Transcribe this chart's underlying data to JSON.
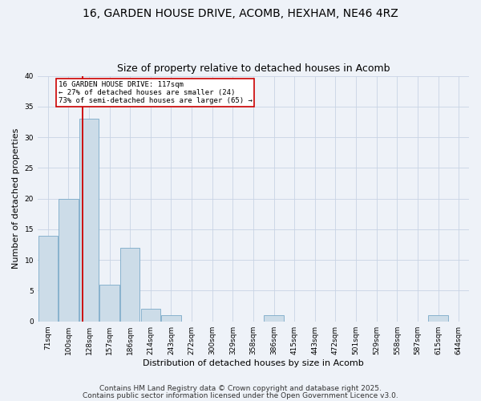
{
  "title_line1": "16, GARDEN HOUSE DRIVE, ACOMB, HEXHAM, NE46 4RZ",
  "title_line2": "Size of property relative to detached houses in Acomb",
  "xlabel": "Distribution of detached houses by size in Acomb",
  "ylabel": "Number of detached properties",
  "categories": [
    "71sqm",
    "100sqm",
    "128sqm",
    "157sqm",
    "186sqm",
    "214sqm",
    "243sqm",
    "272sqm",
    "300sqm",
    "329sqm",
    "358sqm",
    "386sqm",
    "415sqm",
    "443sqm",
    "472sqm",
    "501sqm",
    "529sqm",
    "558sqm",
    "587sqm",
    "615sqm",
    "644sqm"
  ],
  "values": [
    14,
    20,
    33,
    6,
    12,
    2,
    1,
    0,
    0,
    0,
    0,
    1,
    0,
    0,
    0,
    0,
    0,
    0,
    0,
    1,
    0
  ],
  "bar_color": "#ccdce8",
  "bar_edge_color": "#7aaac8",
  "redline_index": 1.7,
  "annotation_text": "16 GARDEN HOUSE DRIVE: 117sqm\n← 27% of detached houses are smaller (24)\n73% of semi-detached houses are larger (65) →",
  "annotation_box_color": "#ffffff",
  "annotation_box_edge": "#cc0000",
  "redline_color": "#cc0000",
  "grid_color": "#c8d4e4",
  "background_color": "#eef2f8",
  "ylim": [
    0,
    40
  ],
  "yticks": [
    0,
    5,
    10,
    15,
    20,
    25,
    30,
    35,
    40
  ],
  "footer_line1": "Contains HM Land Registry data © Crown copyright and database right 2025.",
  "footer_line2": "Contains public sector information licensed under the Open Government Licence v3.0.",
  "title_fontsize": 10,
  "subtitle_fontsize": 9,
  "tick_fontsize": 6.5,
  "ylabel_fontsize": 8,
  "xlabel_fontsize": 8,
  "footer_fontsize": 6.5
}
